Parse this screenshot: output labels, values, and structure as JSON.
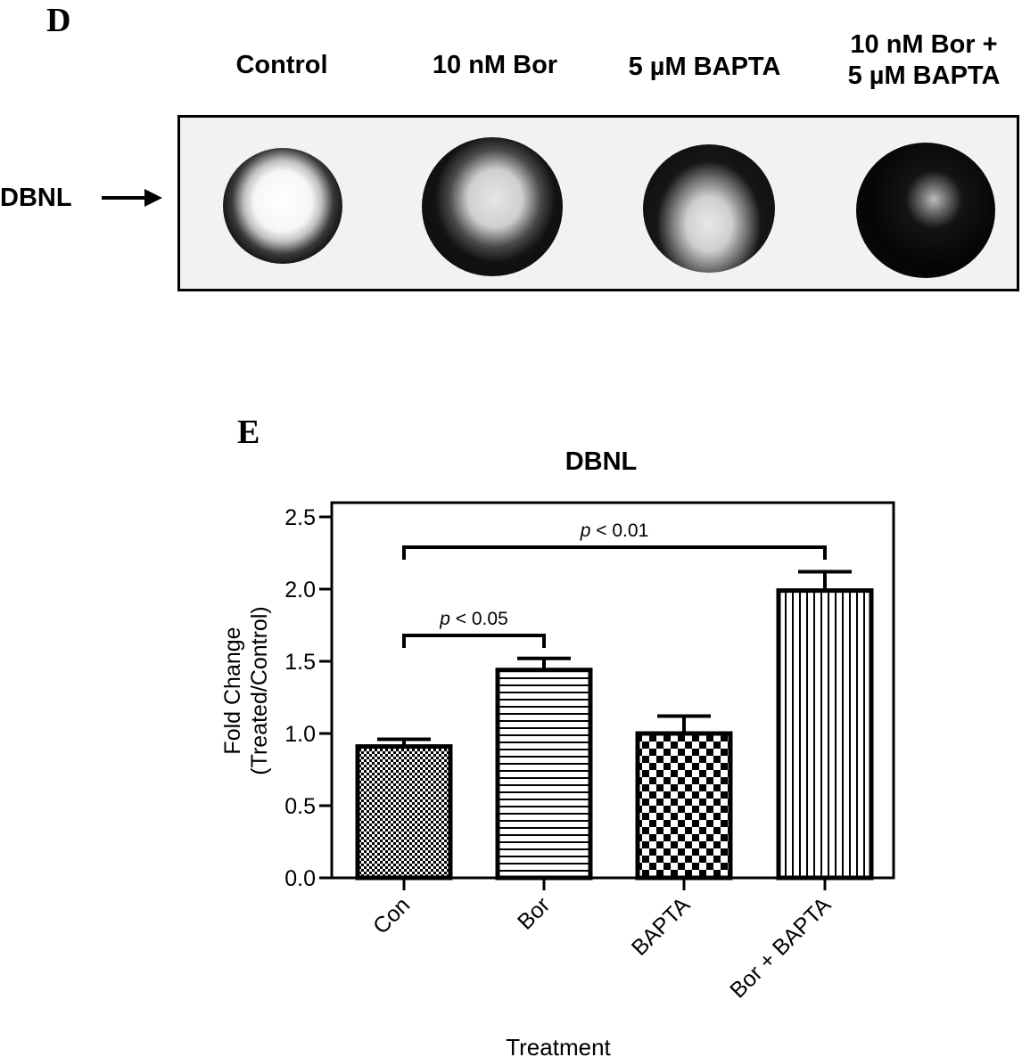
{
  "panel_d": {
    "letter": "D",
    "lane_labels": [
      "Control",
      "10 nM Bor",
      "5 µM BAPTA",
      "10 nM Bor +\n5 µM BAPTA"
    ],
    "row_label": "DBNL"
  },
  "panel_e": {
    "letter": "E"
  },
  "chart_data": {
    "type": "bar",
    "title": "DBNL",
    "xlabel": "Treatment",
    "ylabel_line1": "Fold Change",
    "ylabel_line2": "(Treated/Control)",
    "categories": [
      "Con",
      "Bor",
      "BAPTA",
      "Bor + BAPTA"
    ],
    "values": [
      0.91,
      1.44,
      1.0,
      1.99
    ],
    "errors": [
      0.05,
      0.08,
      0.12,
      0.13
    ],
    "ylim": [
      0,
      2.5
    ],
    "yticks": [
      "0.0",
      "0.5",
      "1.0",
      "1.5",
      "2.0",
      "2.5"
    ],
    "patterns": [
      "fine-checker",
      "horizontal-lines",
      "checker",
      "vertical-lines"
    ],
    "significance": [
      {
        "from": 0,
        "to": 1,
        "label_italic": "p",
        "label_rest": " < 0.05"
      },
      {
        "from": 0,
        "to": 3,
        "label_italic": "p",
        "label_rest": " < 0.01"
      }
    ]
  }
}
